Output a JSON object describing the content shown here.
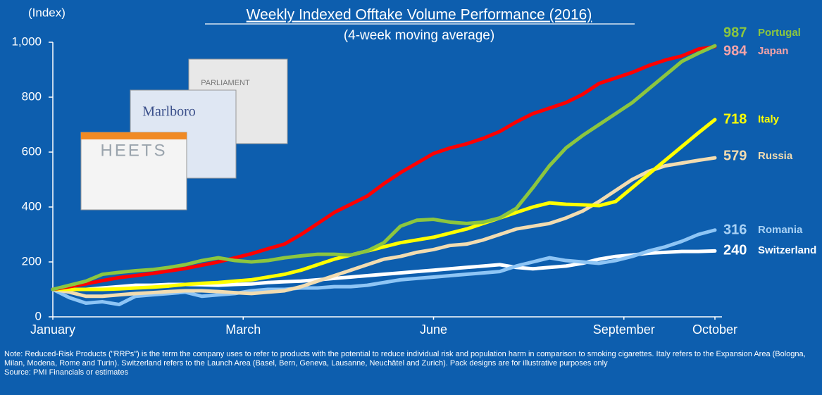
{
  "chart_data": {
    "type": "line",
    "title": "Weekly Indexed Offtake Volume Performance (2016)",
    "subtitle": "(4-week moving average)",
    "y_label": "(Index)",
    "x": [
      0,
      1,
      2,
      3,
      4,
      5,
      6,
      7,
      8,
      9,
      10,
      11,
      12,
      13,
      14,
      15,
      16,
      17,
      18,
      19,
      20,
      21,
      22,
      23,
      24,
      25,
      26,
      27,
      28,
      29,
      30,
      31,
      32,
      33,
      34,
      35,
      36,
      37,
      38,
      39,
      40
    ],
    "xlim": [
      0,
      40
    ],
    "xticks": [
      {
        "value": 0,
        "label": "January"
      },
      {
        "value": 11.5,
        "label": "March"
      },
      {
        "value": 23,
        "label": "June"
      },
      {
        "value": 34.5,
        "label": "September"
      },
      {
        "value": 40,
        "label": "October"
      }
    ],
    "ylim": [
      0,
      1000
    ],
    "yticks": [
      0,
      200,
      400,
      600,
      800,
      {
        "value": 1000,
        "label": "1,000"
      }
    ],
    "series": [
      {
        "name": "Portugal",
        "color": "#8cc63f",
        "label_color": "#8cc63f",
        "values": [
          100,
          115,
          130,
          155,
          162,
          168,
          172,
          180,
          190,
          205,
          215,
          205,
          200,
          205,
          215,
          222,
          228,
          228,
          225,
          240,
          270,
          330,
          352,
          355,
          345,
          340,
          345,
          360,
          395,
          470,
          550,
          615,
          660,
          700,
          740,
          780,
          830,
          880,
          930,
          960,
          987
        ]
      },
      {
        "name": "Japan",
        "color": "#ff0000",
        "label_color": "#f4a3a8",
        "values": [
          100,
          110,
          120,
          132,
          143,
          150,
          158,
          167,
          176,
          188,
          200,
          215,
          230,
          248,
          265,
          300,
          340,
          380,
          410,
          440,
          485,
          525,
          560,
          595,
          615,
          630,
          650,
          675,
          710,
          740,
          760,
          780,
          810,
          850,
          870,
          890,
          915,
          935,
          950,
          975,
          984
        ]
      },
      {
        "name": "Italy",
        "color": "#ffff00",
        "label_color": "#ffff00",
        "values": [
          100,
          100,
          100,
          100,
          102,
          105,
          108,
          112,
          118,
          122,
          125,
          130,
          135,
          145,
          155,
          170,
          190,
          210,
          225,
          240,
          255,
          270,
          280,
          290,
          305,
          320,
          340,
          360,
          380,
          400,
          415,
          410,
          408,
          405,
          420,
          470,
          520,
          570,
          620,
          670,
          718
        ]
      },
      {
        "name": "Russia",
        "color": "#f2dcb0",
        "label_color": "#f2dcb0",
        "values": [
          100,
          90,
          75,
          75,
          80,
          85,
          88,
          92,
          95,
          95,
          92,
          88,
          85,
          90,
          95,
          110,
          130,
          150,
          170,
          190,
          210,
          220,
          235,
          245,
          260,
          265,
          280,
          300,
          320,
          330,
          340,
          360,
          385,
          420,
          460,
          500,
          530,
          550,
          560,
          570,
          579
        ]
      },
      {
        "name": "Romania",
        "color": "#8ec5f5",
        "label_color": "#a9d2f5",
        "values": [
          100,
          70,
          50,
          55,
          45,
          75,
          80,
          85,
          90,
          75,
          80,
          85,
          95,
          100,
          100,
          105,
          105,
          110,
          110,
          115,
          125,
          135,
          140,
          145,
          150,
          155,
          160,
          165,
          185,
          200,
          215,
          205,
          200,
          195,
          205,
          220,
          240,
          255,
          275,
          300,
          316
        ]
      },
      {
        "name": "Switzerland",
        "color": "#ffffff",
        "label_color": "#ffffff",
        "values": [
          100,
          100,
          100,
          105,
          110,
          115,
          115,
          118,
          118,
          117,
          115,
          118,
          120,
          125,
          128,
          130,
          135,
          140,
          145,
          150,
          155,
          160,
          165,
          170,
          175,
          180,
          185,
          190,
          180,
          175,
          180,
          185,
          195,
          210,
          220,
          225,
          232,
          235,
          238,
          238,
          240
        ]
      }
    ],
    "pack_texts": [
      "HEETS",
      "Marlboro",
      "PARLIAMENT"
    ],
    "note": "Note: Reduced-Risk Products (\"RRPs\") is the term the company uses to refer to products with the potential to reduce individual risk and population harm in comparison to smoking cigarettes. Italy refers to the Expansion Area (Bologna, Milan, Modena, Rome and Turin). Switzerland refers to the Launch Area (Basel, Bern, Geneva, Lausanne, Neuchâtel and Zurich). Pack designs are for illustrative purposes only",
    "source": "Source: PMI Financials or estimates"
  }
}
